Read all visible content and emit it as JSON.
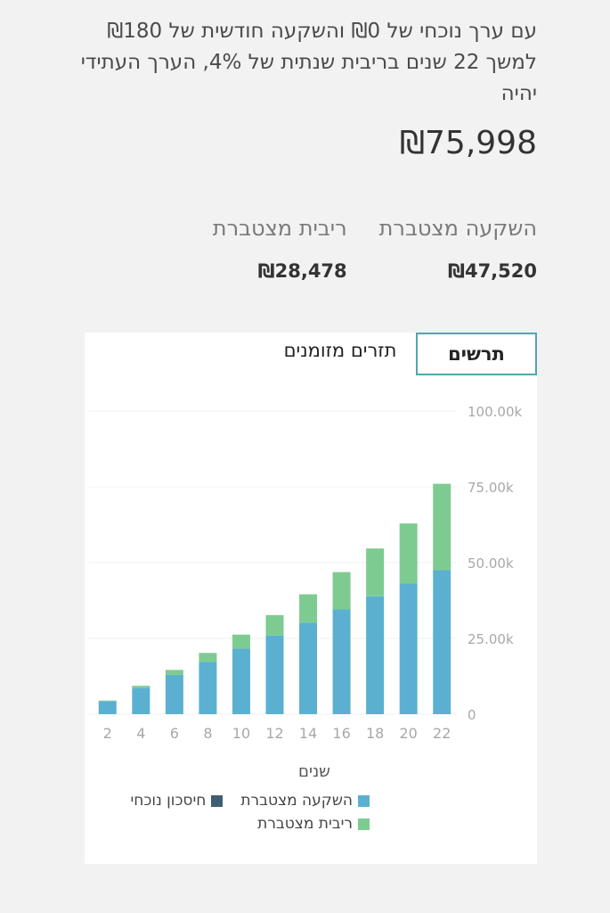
{
  "summary": {
    "description": "עם ערך נוכחי של ₪0 והשקעה חודשית של ₪180 למשך 22 שנים בריבית שנתית של 4%, הערך העתידי יהיה",
    "future_value": "₪75,998"
  },
  "totals": {
    "investment_label": "השקעה מצטברת",
    "investment_value": "₪47,520",
    "interest_label": "ריבית מצטברת",
    "interest_value": "₪28,478"
  },
  "tabs": {
    "charts": "תרשים",
    "cashflows": "תזרים מזומנים"
  },
  "chart_data": {
    "type": "bar",
    "stacked": true,
    "categories": [
      "2",
      "4",
      "6",
      "8",
      "10",
      "12",
      "14",
      "16",
      "18",
      "20",
      "22"
    ],
    "series": [
      {
        "name": "השקעה מצטברת",
        "color": "#5bb0d1",
        "values": [
          4320,
          8640,
          12960,
          17280,
          21600,
          25920,
          30240,
          34560,
          38880,
          43200,
          47520
        ]
      },
      {
        "name": "ריבית מצטברת",
        "color": "#7ecb91",
        "values": [
          177,
          718,
          1634,
          2936,
          4640,
          6760,
          9308,
          12305,
          15770,
          19716,
          28478
        ]
      },
      {
        "name": "חיסכון נוכחי",
        "color": "#3f5e72",
        "values": [
          0,
          0,
          0,
          0,
          0,
          0,
          0,
          0,
          0,
          0,
          0
        ]
      }
    ],
    "y_ticks": [
      "0",
      "25.00k",
      "50.00k",
      "75.00k",
      "100.00k"
    ],
    "ylim": [
      0,
      100000
    ],
    "xlabel": "שנים",
    "legend_position": "bottom",
    "grid": true
  }
}
